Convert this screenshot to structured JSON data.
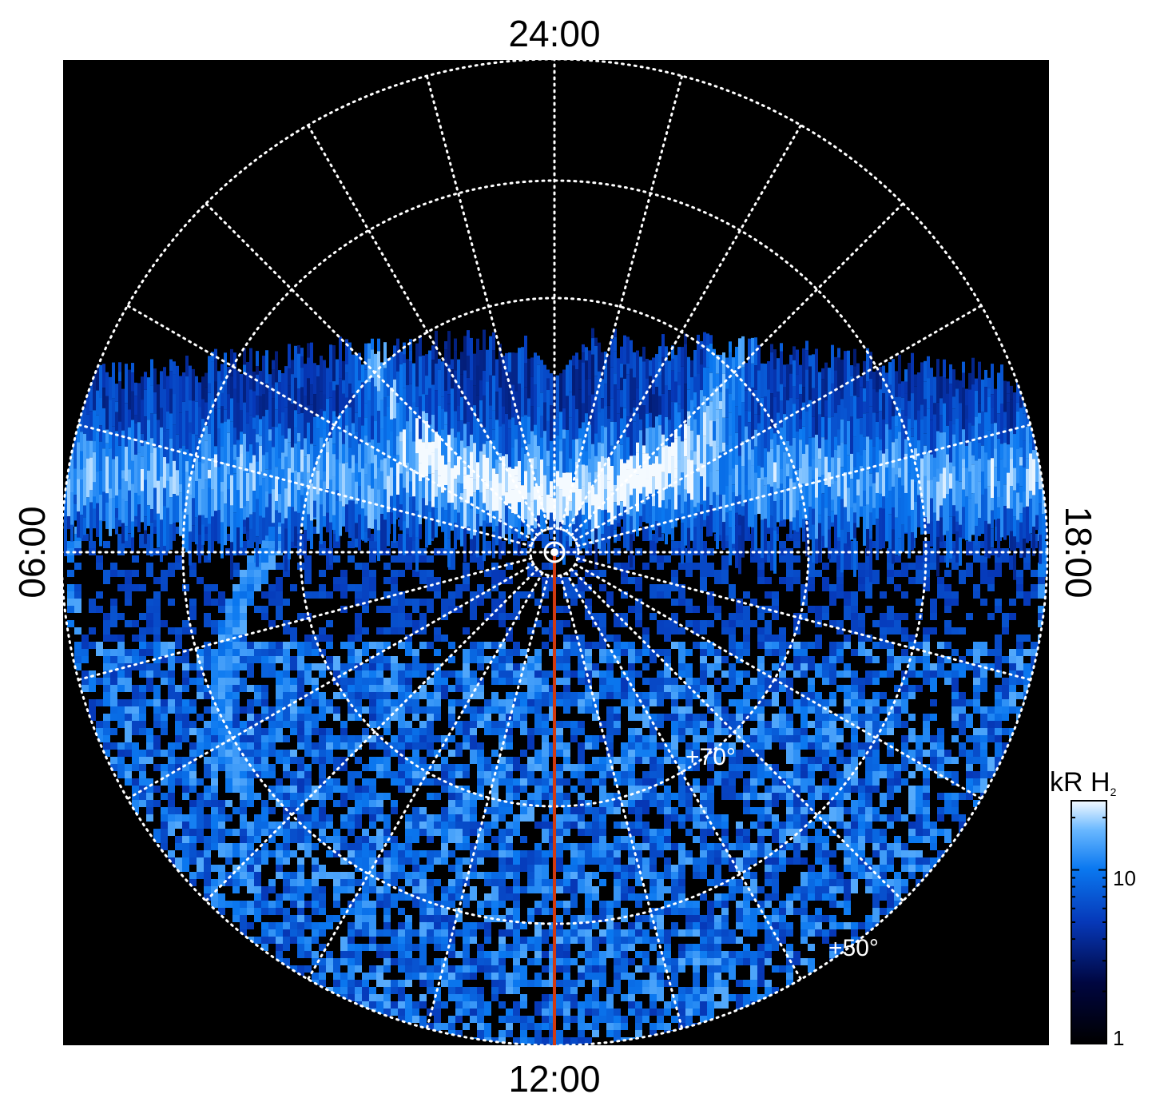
{
  "labels": {
    "top": "24:00",
    "bottom": "12:00",
    "left": "06:00",
    "right": "18:00",
    "lat_inner": "+70°",
    "lat_outer": "+50°"
  },
  "colorbar": {
    "title_main": "kR H",
    "title_sub": "2",
    "tick_10": "10",
    "tick_1": "1",
    "scale": "log",
    "range": [
      1,
      25
    ]
  },
  "colors": {
    "background": "#000000",
    "grid": "#ffffff",
    "meridian_line": "#d03a10",
    "aurora_low": "#000a3a",
    "aurora_mid": "#0a6ee8",
    "aurora_high": "#e8f6ff"
  }
}
